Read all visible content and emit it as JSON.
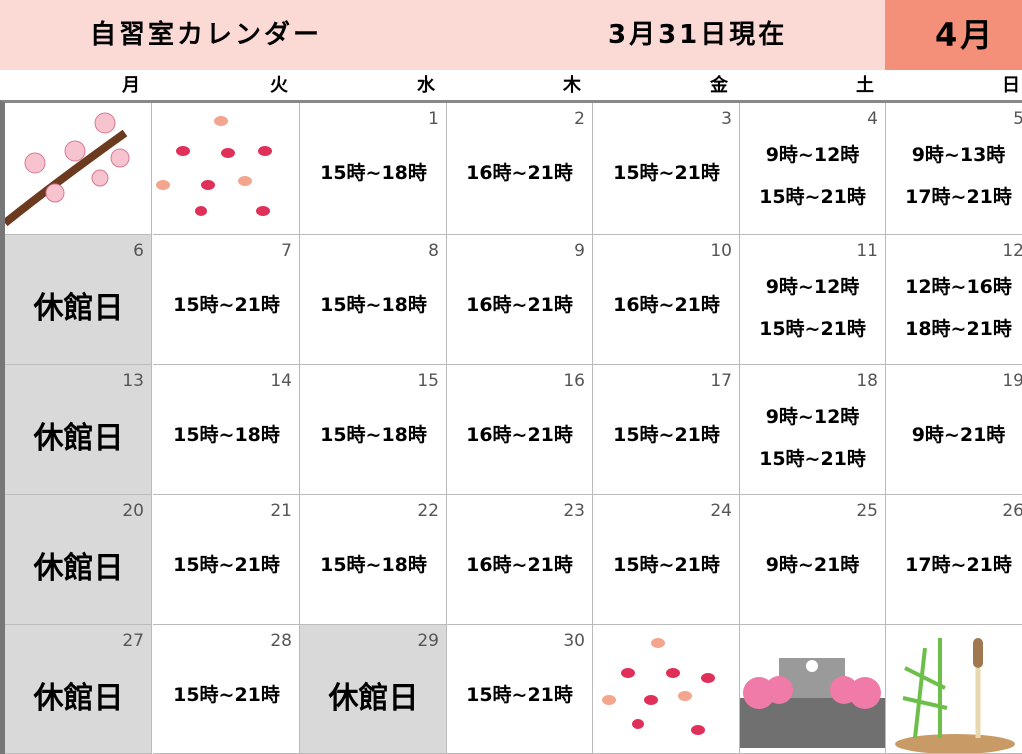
{
  "header": {
    "title": "自習室カレンダー",
    "as_of": "3月31日現在",
    "month": "4月"
  },
  "weekdays": [
    "月",
    "火",
    "水",
    "木",
    "金",
    "土",
    "日"
  ],
  "weeks": [
    [
      null,
      null,
      {
        "day": 1,
        "times": [
          "15時~18時"
        ]
      },
      {
        "day": 2,
        "times": [
          "16時~21時"
        ]
      },
      {
        "day": 3,
        "times": [
          "15時~21時"
        ]
      },
      {
        "day": 4,
        "times": [
          "9時~12時",
          "15時~21時"
        ]
      },
      {
        "day": 5,
        "times": [
          "9時~13時",
          "17時~21時"
        ]
      }
    ],
    [
      {
        "day": 6,
        "note": "休館日"
      },
      {
        "day": 7,
        "times": [
          "15時~21時"
        ]
      },
      {
        "day": 8,
        "times": [
          "15時~18時"
        ]
      },
      {
        "day": 9,
        "times": [
          "16時~21時"
        ]
      },
      {
        "day": 10,
        "times": [
          "16時~21時"
        ]
      },
      {
        "day": 11,
        "times": [
          "9時~12時",
          "15時~21時"
        ]
      },
      {
        "day": 12,
        "times": [
          "12時~16時",
          "18時~21時"
        ]
      }
    ],
    [
      {
        "day": 13,
        "note": "休館日"
      },
      {
        "day": 14,
        "times": [
          "15時~18時"
        ]
      },
      {
        "day": 15,
        "times": [
          "15時~18時"
        ]
      },
      {
        "day": 16,
        "times": [
          "16時~21時"
        ]
      },
      {
        "day": 17,
        "times": [
          "15時~21時"
        ]
      },
      {
        "day": 18,
        "times": [
          "9時~12時",
          "15時~21時"
        ]
      },
      {
        "day": 19,
        "times": [
          "9時~21時"
        ]
      }
    ],
    [
      {
        "day": 20,
        "note": "休館日"
      },
      {
        "day": 21,
        "times": [
          "15時~21時"
        ]
      },
      {
        "day": 22,
        "times": [
          "15時~18時"
        ]
      },
      {
        "day": 23,
        "times": [
          "16時~21時"
        ]
      },
      {
        "day": 24,
        "times": [
          "15時~21時"
        ]
      },
      {
        "day": 25,
        "times": [
          "9時~21時"
        ]
      },
      {
        "day": 26,
        "times": [
          "17時~21時"
        ]
      }
    ],
    [
      {
        "day": 27,
        "note": "休館日"
      },
      {
        "day": 28,
        "times": [
          "15時~21時"
        ]
      },
      {
        "day": 29,
        "note": "休館日"
      },
      {
        "day": 30,
        "times": [
          "15時~21時"
        ]
      },
      null,
      null,
      null
    ]
  ]
}
